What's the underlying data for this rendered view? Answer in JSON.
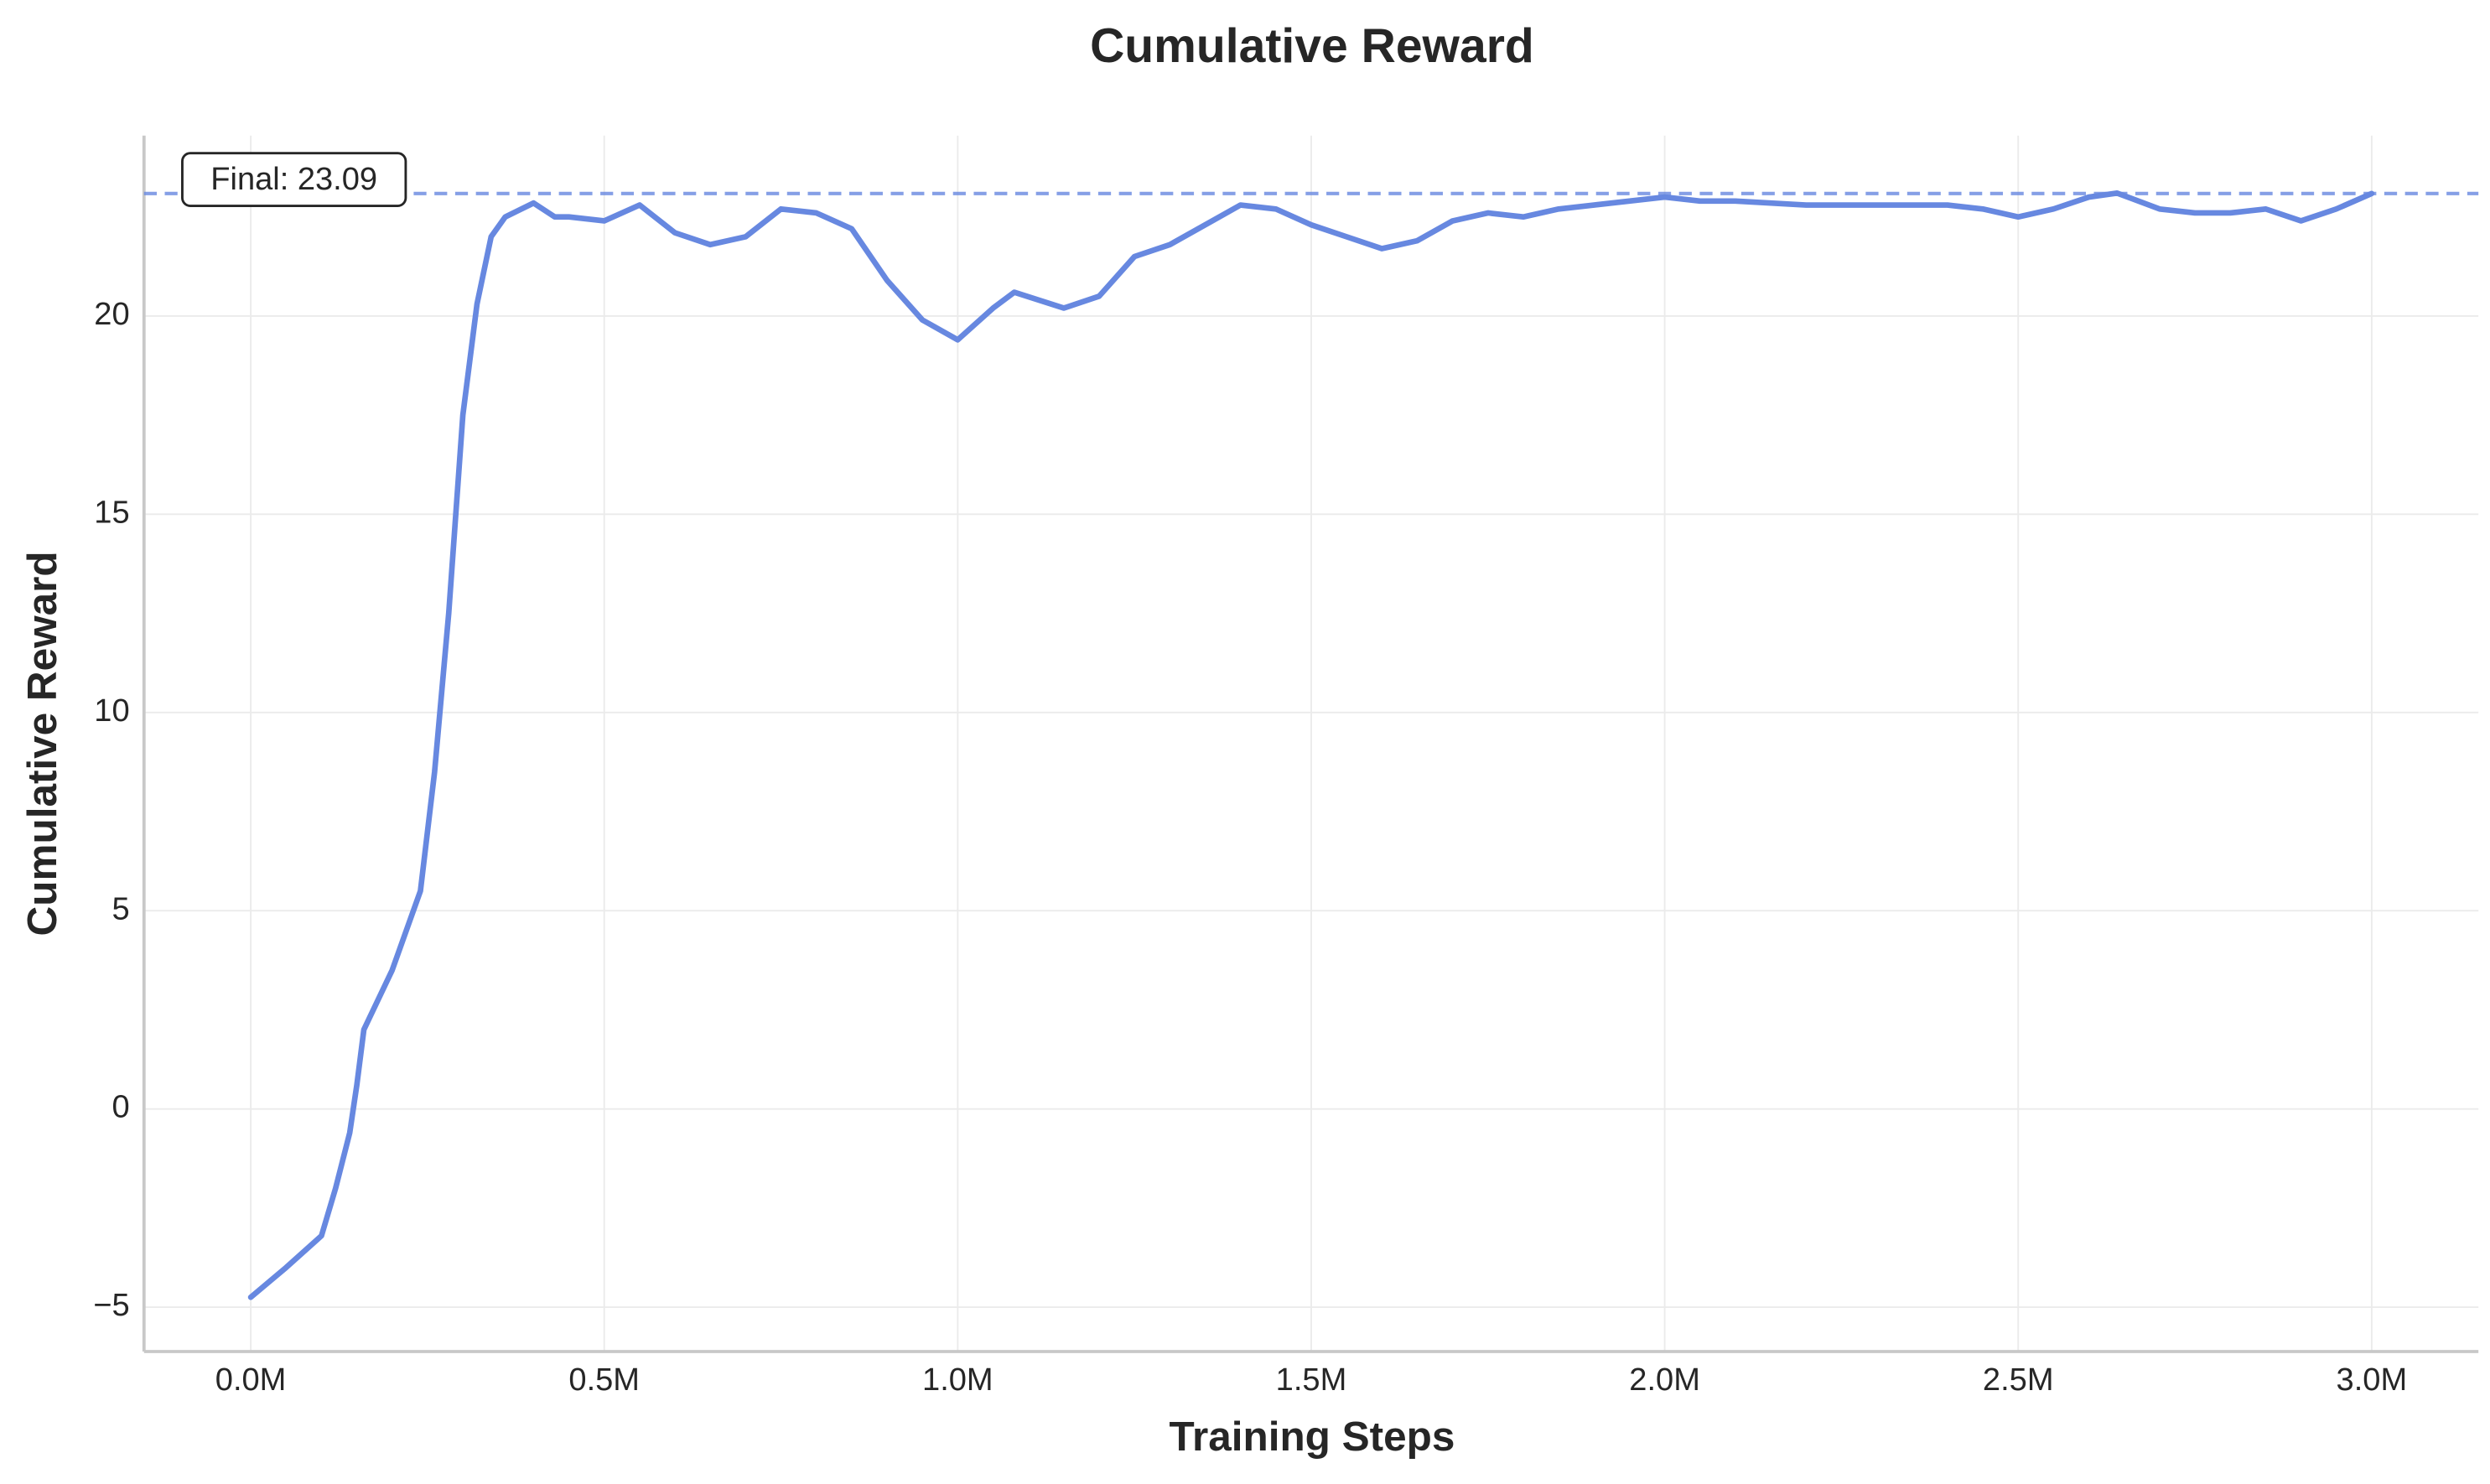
{
  "chart_data": {
    "type": "line",
    "title": "Cumulative Reward",
    "x_label": "Training Steps",
    "y_label": "Cumulative Reward",
    "annotation": "Final: 23.09",
    "reference_line": 23.09,
    "grid": true,
    "xlim": [
      -151000,
      3151000
    ],
    "ylim": [
      -6.12,
      24.55
    ],
    "xticks": [
      {
        "value": 0,
        "label": "0.0M"
      },
      {
        "value": 500000,
        "label": "0.5M"
      },
      {
        "value": 1000000,
        "label": "1.0M"
      },
      {
        "value": 1500000,
        "label": "1.5M"
      },
      {
        "value": 2000000,
        "label": "2.0M"
      },
      {
        "value": 2500000,
        "label": "2.5M"
      },
      {
        "value": 3000000,
        "label": "3.0M"
      }
    ],
    "yticks": [
      {
        "value": -5,
        "label": "−5"
      },
      0,
      5,
      10,
      15,
      20
    ],
    "x": [
      0,
      50000,
      100000,
      120000,
      140000,
      150000,
      160000,
      200000,
      220000,
      240000,
      260000,
      280000,
      300000,
      320000,
      340000,
      360000,
      400000,
      430000,
      450000,
      500000,
      550000,
      600000,
      650000,
      700000,
      750000,
      800000,
      850000,
      900000,
      950000,
      1000000,
      1050000,
      1080000,
      1150000,
      1200000,
      1250000,
      1300000,
      1350000,
      1400000,
      1450000,
      1500000,
      1550000,
      1600000,
      1650000,
      1700000,
      1750000,
      1800000,
      1850000,
      1900000,
      1950000,
      2000000,
      2050000,
      2100000,
      2200000,
      2300000,
      2350000,
      2400000,
      2450000,
      2500000,
      2550000,
      2600000,
      2640000,
      2700000,
      2750000,
      2800000,
      2850000,
      2900000,
      2950000,
      3000000
    ],
    "series": [
      {
        "name": "Cumulative Reward",
        "color": "#6788e0",
        "values": [
          -4.75,
          -4.0,
          -3.2,
          -2.0,
          -0.6,
          0.6,
          2.0,
          3.5,
          4.5,
          5.5,
          8.5,
          12.5,
          17.5,
          20.3,
          22.0,
          22.5,
          22.85,
          22.5,
          22.5,
          22.4,
          22.8,
          22.1,
          21.8,
          22.0,
          22.7,
          22.6,
          22.2,
          20.9,
          19.9,
          19.4,
          20.2,
          20.6,
          20.2,
          20.5,
          21.5,
          21.8,
          22.3,
          22.8,
          22.7,
          22.3,
          22.0,
          21.7,
          21.9,
          22.4,
          22.6,
          22.5,
          22.7,
          22.8,
          22.9,
          23.0,
          22.9,
          22.9,
          22.8,
          22.8,
          22.8,
          22.8,
          22.7,
          22.5,
          22.7,
          23.0,
          23.1,
          22.7,
          22.6,
          22.6,
          22.7,
          22.4,
          22.7,
          23.09
        ]
      }
    ]
  }
}
